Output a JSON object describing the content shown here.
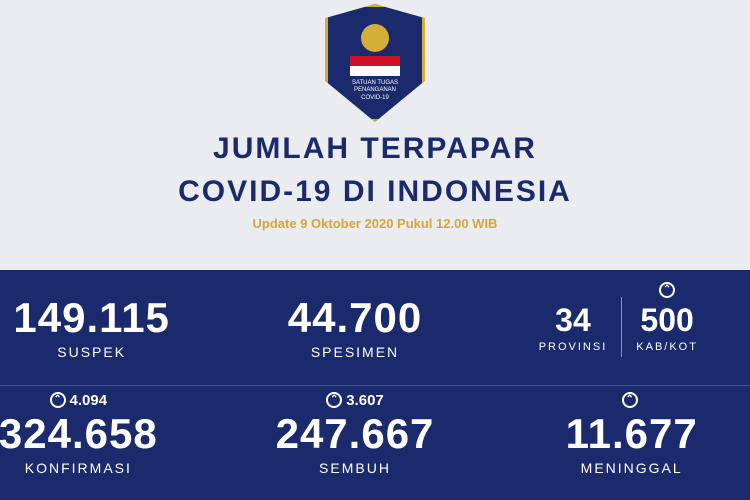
{
  "shield": {
    "org_line1": "SATUAN TUGAS",
    "org_line2": "PENANGANAN",
    "org_line3": "COVID-19"
  },
  "title": {
    "line1": "JUMLAH TERPAPAR",
    "line2": "COVID-19 DI INDONESIA"
  },
  "update": "Update 9 Oktober 2020 Pukul 12.00 WIB",
  "stats": {
    "suspek": {
      "value": "149.115",
      "label": "SUSPEK"
    },
    "spesimen": {
      "value": "44.700",
      "label": "SPESIMEN"
    },
    "provinsi": {
      "value": "34",
      "label": "PROVINSI"
    },
    "kabkota": {
      "value": "500",
      "label": "KAB/KOT"
    },
    "konfirmasi": {
      "value": "324.658",
      "label": "KONFIRMASI",
      "increment": "4.094"
    },
    "sembuh": {
      "value": "247.667",
      "label": "SEMBUH",
      "increment": "3.607"
    },
    "meninggal": {
      "value": "11.677",
      "label": "MENINGGAL",
      "increment": ""
    }
  },
  "colors": {
    "bg_top": "#eaecef",
    "bg_bottom": "#1a2a6c",
    "accent_gold": "#d4a53a",
    "text_white": "#ffffff"
  },
  "up_arrow": "⌃"
}
